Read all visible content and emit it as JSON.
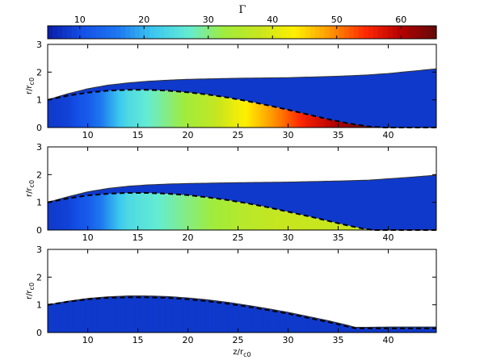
{
  "chart_data": {
    "type": "heatmap",
    "colorbar": {
      "label": "Γ",
      "range": [
        5,
        65.5
      ],
      "ticks": [
        10,
        20,
        30,
        40,
        50,
        60
      ],
      "tick_labels": [
        "10",
        "20",
        "30",
        "40",
        "50",
        "60"
      ],
      "colormap": [
        "#0a1ea8",
        "#1450e8",
        "#1e78f0",
        "#3cc8f0",
        "#64ecd2",
        "#a0ec3c",
        "#c8e61e",
        "#fff000",
        "#ff9600",
        "#ff2800",
        "#b40000",
        "#640a0a"
      ]
    },
    "panels": [
      {
        "id": "top",
        "xlim": [
          6,
          44.8
        ],
        "ylim": [
          0,
          3
        ],
        "xticks": [
          10,
          15,
          20,
          25,
          30,
          35,
          40
        ],
        "xtick_labels": [
          "10",
          "15",
          "20",
          "25",
          "30",
          "35",
          "40"
        ],
        "yticks": [
          0,
          1,
          2,
          3
        ],
        "ytick_labels": [
          "0",
          "1",
          "2",
          "3"
        ],
        "ylabel": "r/r",
        "ylabel_sub": "c0",
        "xlabel": "",
        "xlabel_sub": "",
        "background_gamma": 8,
        "outer_boundary": {
          "z": [
            6,
            8,
            10,
            12,
            14,
            16,
            18,
            20,
            25,
            30,
            35,
            38,
            40,
            42,
            44.8
          ],
          "r": [
            1.0,
            1.22,
            1.4,
            1.53,
            1.61,
            1.67,
            1.71,
            1.74,
            1.78,
            1.8,
            1.85,
            1.9,
            1.95,
            2.02,
            2.12
          ]
        },
        "core_boundary": {
          "z": [
            6,
            8,
            10,
            12,
            14,
            16,
            18,
            20,
            22,
            24,
            26,
            28,
            30,
            32,
            34,
            36,
            38,
            39.5,
            44.8
          ],
          "r": [
            1.0,
            1.15,
            1.26,
            1.33,
            1.36,
            1.36,
            1.33,
            1.27,
            1.19,
            1.08,
            0.95,
            0.8,
            0.64,
            0.47,
            0.3,
            0.15,
            0.04,
            0,
            0
          ]
        },
        "core_gamma_profile": {
          "z": [
            6,
            8,
            10,
            12,
            14,
            16,
            18,
            20,
            22,
            24,
            26,
            28,
            30,
            32,
            34,
            36,
            38,
            39.5
          ],
          "gamma": [
            8,
            9,
            12,
            18,
            24,
            27,
            30,
            33,
            36,
            40,
            44,
            48,
            52,
            56,
            59,
            62,
            64,
            65
          ]
        }
      },
      {
        "id": "middle",
        "xlim": [
          6,
          44.8
        ],
        "ylim": [
          0,
          3
        ],
        "xticks": [
          10,
          15,
          20,
          25,
          30,
          35,
          40
        ],
        "xtick_labels": [
          "10",
          "15",
          "20",
          "25",
          "30",
          "35",
          "40"
        ],
        "yticks": [
          0,
          1,
          2,
          3
        ],
        "ytick_labels": [
          "0",
          "1",
          "2",
          "3"
        ],
        "ylabel": "r/r",
        "ylabel_sub": "c0",
        "xlabel": "",
        "xlabel_sub": "",
        "background_gamma": 8,
        "outer_boundary": {
          "z": [
            6,
            8,
            10,
            12,
            14,
            16,
            18,
            20,
            25,
            30,
            35,
            38,
            40,
            42,
            44.8
          ],
          "r": [
            1.0,
            1.2,
            1.38,
            1.5,
            1.58,
            1.63,
            1.66,
            1.68,
            1.71,
            1.73,
            1.77,
            1.8,
            1.85,
            1.9,
            1.98
          ]
        },
        "core_boundary": {
          "z": [
            6,
            8,
            10,
            12,
            14,
            16,
            18,
            20,
            22,
            24,
            26,
            28,
            30,
            32,
            34,
            36,
            37.5,
            38.5,
            44.8
          ],
          "r": [
            1.0,
            1.14,
            1.25,
            1.31,
            1.34,
            1.34,
            1.31,
            1.26,
            1.18,
            1.08,
            0.96,
            0.82,
            0.66,
            0.5,
            0.33,
            0.16,
            0.05,
            0,
            0
          ]
        },
        "core_gamma_profile": {
          "z": [
            6,
            8,
            10,
            12,
            14,
            16,
            18,
            20,
            22,
            24,
            26,
            28,
            30,
            32,
            34,
            36,
            38.5
          ],
          "gamma": [
            8,
            9,
            12,
            18,
            24,
            26,
            28,
            30,
            32,
            34,
            36,
            37,
            38,
            38,
            38,
            38,
            38
          ]
        }
      },
      {
        "id": "bottom",
        "xlim": [
          6,
          44.8
        ],
        "ylim": [
          0,
          3
        ],
        "xticks": [
          10,
          15,
          20,
          25,
          30,
          35,
          40
        ],
        "xtick_labels": [
          "10",
          "15",
          "20",
          "25",
          "30",
          "35",
          "40"
        ],
        "yticks": [
          0,
          1,
          2,
          3
        ],
        "ytick_labels": [
          "0",
          "1",
          "2",
          "3"
        ],
        "ylabel": "r/r",
        "ylabel_sub": "c0",
        "xlabel": "z/r",
        "xlabel_sub": "c0",
        "background_gamma": 8,
        "outer_boundary": {
          "z": [
            6,
            8,
            10,
            12,
            14,
            16,
            18,
            20,
            22,
            24,
            26,
            28,
            30,
            32,
            34,
            36,
            36.7,
            38,
            40,
            42,
            44.8
          ],
          "r": [
            1.0,
            1.13,
            1.23,
            1.29,
            1.32,
            1.32,
            1.3,
            1.25,
            1.18,
            1.09,
            0.98,
            0.86,
            0.73,
            0.58,
            0.43,
            0.26,
            0.19,
            0.19,
            0.2,
            0.2,
            0.2
          ]
        },
        "core_boundary": {
          "z": [
            6,
            8,
            10,
            12,
            14,
            16,
            18,
            20,
            22,
            24,
            26,
            28,
            30,
            32,
            34,
            36,
            36.7,
            44.8
          ],
          "r": [
            1.0,
            1.11,
            1.2,
            1.25,
            1.27,
            1.27,
            1.25,
            1.2,
            1.13,
            1.04,
            0.93,
            0.81,
            0.68,
            0.53,
            0.38,
            0.21,
            0.15,
            0.15
          ]
        },
        "core_gamma_profile": {
          "z": [
            6,
            44.8
          ],
          "gamma": [
            8,
            8
          ]
        }
      }
    ]
  }
}
